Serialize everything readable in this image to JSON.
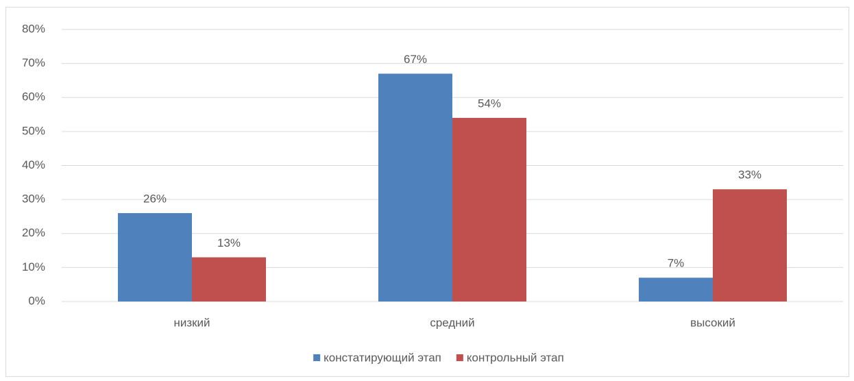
{
  "chart_data": {
    "type": "bar",
    "categories": [
      "низкий",
      "средний",
      "высокий"
    ],
    "series": [
      {
        "name": "констатирующий этап",
        "color": "#4f81bd",
        "values": [
          26,
          67,
          7
        ],
        "value_labels": [
          "26%",
          "67%",
          "7%"
        ]
      },
      {
        "name": "контрольный этап",
        "color": "#c0504d",
        "values": [
          13,
          54,
          33
        ],
        "value_labels": [
          "13%",
          "54%",
          "33%"
        ]
      }
    ],
    "ylim": [
      0,
      80
    ],
    "yticks": [
      {
        "value": 0,
        "label": "0%"
      },
      {
        "value": 10,
        "label": "10%"
      },
      {
        "value": 20,
        "label": "20%"
      },
      {
        "value": 30,
        "label": "30%"
      },
      {
        "value": 40,
        "label": "40%"
      },
      {
        "value": 50,
        "label": "50%"
      },
      {
        "value": 60,
        "label": "60%"
      },
      {
        "value": 70,
        "label": "70%"
      },
      {
        "value": 80,
        "label": "80%"
      }
    ],
    "grid": true,
    "legend": "bottom"
  }
}
